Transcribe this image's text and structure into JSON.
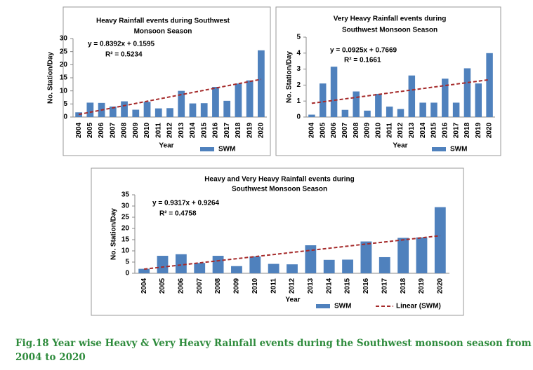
{
  "chart_data": [
    {
      "type": "bar",
      "title": [
        "Heavy Rainfall events during Southwest",
        "Monsoon Season"
      ],
      "categories": [
        "2004",
        "2005",
        "2006",
        "2007",
        "2008",
        "2009",
        "2010",
        "2011",
        "2012",
        "2013",
        "2014",
        "2015",
        "2016",
        "2017",
        "2018",
        "2019",
        "2020"
      ],
      "series": [
        {
          "name": "SWM",
          "color": "#4f81bd",
          "values": [
            1.8,
            5.5,
            5.4,
            4.0,
            6.0,
            2.8,
            5.8,
            3.3,
            3.4,
            10.0,
            5.2,
            5.3,
            11.5,
            6.2,
            12.8,
            14.0,
            25.5
          ]
        }
      ],
      "trendline_color": "#a52a2a",
      "annotations": [
        "y = 0.8392x + 0.1595",
        "R² = 0.5234"
      ],
      "ylim": [
        0,
        30
      ],
      "yticks": [
        0,
        5,
        10,
        15,
        20,
        25,
        30
      ],
      "x_label": "Year",
      "y_label": "No. Station/Day"
    },
    {
      "type": "bar",
      "title": [
        "Very Heavy Rainfall events during",
        "Southwest Monsoon Season"
      ],
      "categories": [
        "2004",
        "2005",
        "2006",
        "2007",
        "2008",
        "2009",
        "2010",
        "2011",
        "2012",
        "2013",
        "2014",
        "2015",
        "2016",
        "2017",
        "2018",
        "2019",
        "2020"
      ],
      "series": [
        {
          "name": "SWM",
          "color": "#4f81bd",
          "values": [
            0.15,
            2.1,
            3.15,
            0.45,
            1.6,
            0.4,
            1.45,
            0.65,
            0.5,
            2.6,
            0.9,
            0.9,
            2.4,
            0.9,
            3.05,
            2.1,
            4.0
          ]
        }
      ],
      "trendline_color": "#a52a2a",
      "annotations": [
        "y = 0.0925x + 0.7669",
        "R² = 0.1661"
      ],
      "ylim": [
        0,
        5
      ],
      "yticks": [
        0,
        1,
        2,
        3,
        4,
        5
      ],
      "x_label": "Year",
      "y_label": "No. Station/Day"
    },
    {
      "type": "bar",
      "title": [
        "Heavy and Very Heavy Rainfall events during",
        "Southwest Monsoon Season"
      ],
      "categories": [
        "2004",
        "2005",
        "2006",
        "2007",
        "2008",
        "2009",
        "2010",
        "2011",
        "2012",
        "2013",
        "2014",
        "2015",
        "2016",
        "2017",
        "2018",
        "2019",
        "2020"
      ],
      "series": [
        {
          "name": "SWM",
          "color": "#4f81bd",
          "values": [
            2.0,
            7.8,
            8.5,
            4.6,
            7.8,
            3.2,
            7.5,
            4.2,
            4.0,
            12.5,
            6.0,
            6.1,
            14.2,
            7.2,
            15.8,
            16.0,
            29.5
          ]
        }
      ],
      "trendline_color": "#a52a2a",
      "trendline_name": "Linear (SWM)",
      "annotations": [
        "y = 0.9317x + 0.9264",
        "R² = 0.4758"
      ],
      "ylim": [
        0,
        35
      ],
      "yticks": [
        0,
        5,
        10,
        15,
        20,
        25,
        30,
        35
      ],
      "x_label": "Year",
      "y_label": "No. Station/Day"
    }
  ],
  "caption": [
    "Fig.18 Year wise Heavy & Very Heavy Rainfall events during the Southwest monsoon season from",
    "2004 to 2020"
  ]
}
